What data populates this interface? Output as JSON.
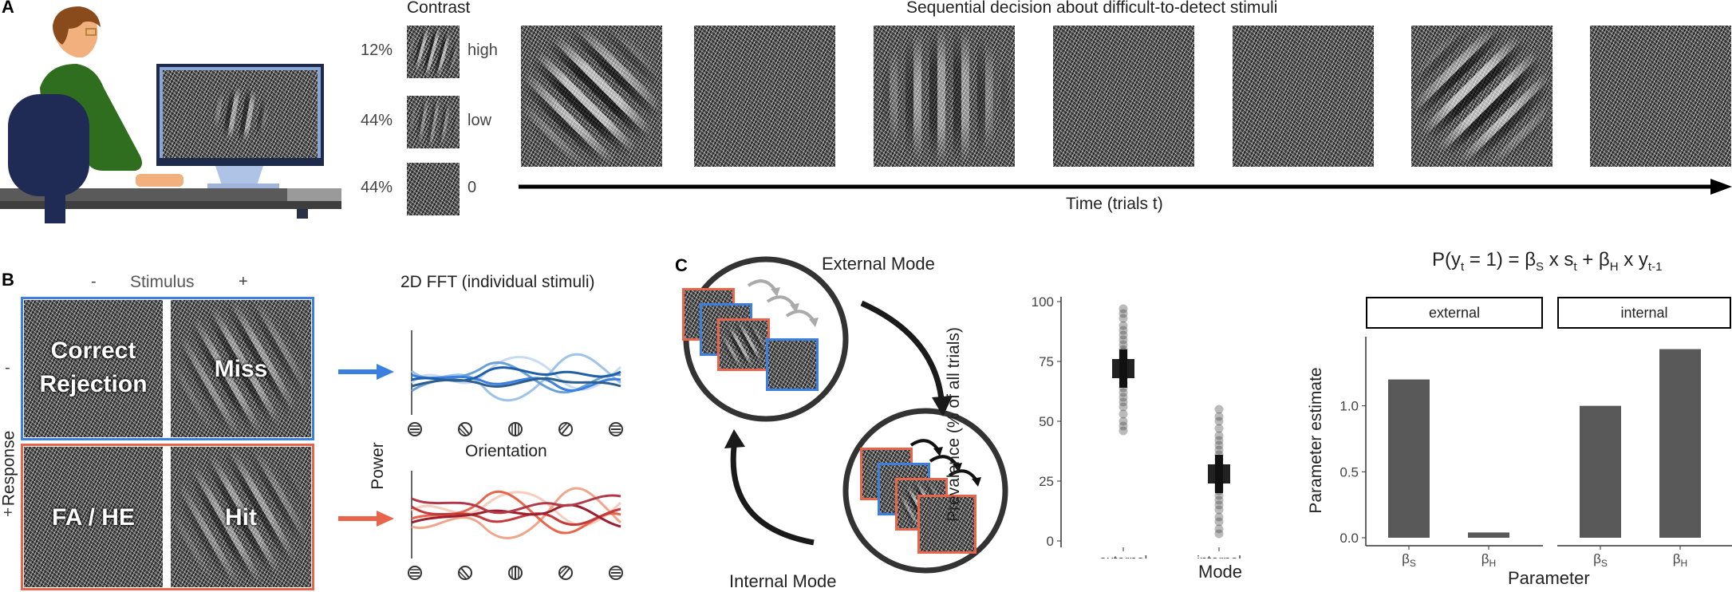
{
  "panel_labels": {
    "a": "A",
    "b": "B",
    "c": "C"
  },
  "panel_a": {
    "contrast_title": "Contrast",
    "rows": [
      {
        "percent": "12%",
        "level": "high"
      },
      {
        "percent": "44%",
        "level": "low"
      },
      {
        "percent": "44%",
        "level": "0"
      }
    ],
    "sequence_title": "Sequential decision about difficult-to-detect stimuli",
    "time_label": "Time (trials t)"
  },
  "panel_b": {
    "stimulus_label": "Stimulus",
    "stim_minus": "-",
    "stim_plus": "+",
    "response_label": "Response",
    "resp_minus": "-",
    "resp_plus": "+",
    "quadrants": {
      "correct_rejection_line1": "Correct",
      "correct_rejection_line2": "Rejection",
      "miss": "Miss",
      "fa_he": "FA / HE",
      "hit": "Hit"
    },
    "fft_title": "2D FFT (individual stimuli)",
    "power_label": "Power",
    "orientation_label": "Orientation",
    "colors": {
      "blue": "#3b7fe0",
      "red": "#e8644a"
    }
  },
  "panel_c": {
    "external_mode": "External Mode",
    "internal_mode": "Internal Mode"
  },
  "chart_data": [
    {
      "type": "scatter",
      "xlabel": "Mode",
      "ylabel": "Prevalence (% of all trials)",
      "categories": [
        "external",
        "internal"
      ],
      "ylim": [
        0,
        100
      ],
      "yticks": [
        "0",
        "25",
        "50",
        "75",
        "100"
      ],
      "mean": [
        72,
        28
      ],
      "error": [
        4,
        4
      ],
      "points": [
        [
          97,
          95,
          93,
          90,
          88,
          86,
          84,
          82,
          80,
          79,
          78,
          77,
          76,
          75,
          74,
          73,
          72,
          71,
          70,
          69,
          68,
          66,
          64,
          62,
          60,
          58,
          56,
          53,
          50,
          48,
          46
        ],
        [
          55,
          52,
          50,
          47,
          44,
          42,
          40,
          38,
          36,
          34,
          32,
          31,
          30,
          29,
          28,
          27,
          26,
          25,
          24,
          23,
          22,
          21,
          19,
          17,
          15,
          13,
          10,
          8,
          5,
          3
        ]
      ]
    },
    {
      "type": "bar",
      "title_parts": {
        "p": "P(y",
        "t1": "t",
        "eq": " = 1) = β",
        "s": "S",
        "xs": " x s",
        "t2": "t",
        "plus": " + β",
        "h": "H",
        "xy": " x y",
        "tm1": "t-1"
      },
      "facets": [
        "external",
        "internal"
      ],
      "categories": [
        "β_S",
        "β_H"
      ],
      "cat_base": "β",
      "cat_subs": [
        "S",
        "H"
      ],
      "series": [
        {
          "facet": "external",
          "values": [
            1.2,
            0.04
          ]
        },
        {
          "facet": "internal",
          "values": [
            1.0,
            1.43
          ]
        }
      ],
      "xlabel": "Parameter",
      "ylabel": "Parameter estimate",
      "ylim": [
        0,
        1.5
      ],
      "yticks": [
        "0.0",
        "0.5",
        "1.0"
      ]
    }
  ]
}
